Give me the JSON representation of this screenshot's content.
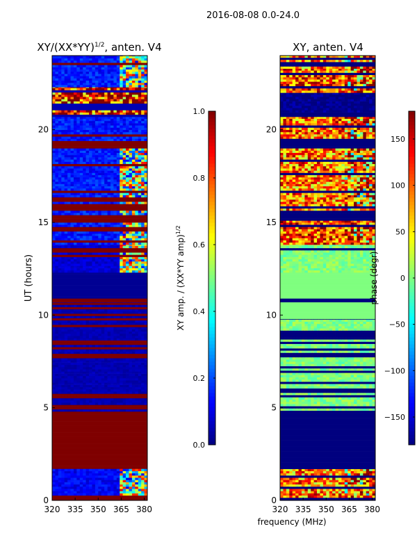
{
  "figure": {
    "suptitle": "2016-08-08 0.0-24.0",
    "xlabel_shared": "frequency (MHz)"
  },
  "colors": {
    "jet": [
      "#00007f",
      "#0000ff",
      "#007fff",
      "#00ffff",
      "#7fff7f",
      "#ffff00",
      "#ff7f00",
      "#ff0000",
      "#7f0000"
    ]
  },
  "chart_data": [
    {
      "id": "amp",
      "type": "heatmap",
      "title_main": "XY/(XX*YY)",
      "title_sup": "1/2",
      "title_tail": ", anten. V4",
      "ylabel": "UT (hours)",
      "xlim": [
        320,
        382
      ],
      "ylim": [
        0,
        24
      ],
      "xticks": [
        320,
        335,
        350,
        365,
        380
      ],
      "yticks": [
        0,
        5,
        10,
        15,
        20
      ],
      "clim": [
        0.0,
        1.0
      ],
      "colorbar": {
        "label_main": "XY amp. / (XX*YY amp)",
        "label_sup": "1/2",
        "ticks": [
          0.0,
          0.2,
          0.4,
          0.6,
          0.8,
          1.0
        ],
        "tick_labels": [
          "0.0",
          "0.2",
          "0.4",
          "0.6",
          "0.8",
          "1.0"
        ]
      },
      "time_bands": [
        {
          "t0": 0.0,
          "t1": 0.15,
          "pattern": "solid",
          "level": 1.0
        },
        {
          "t0": 0.15,
          "t1": 1.75,
          "pattern": "mixed",
          "level": 0.12
        },
        {
          "t0": 1.75,
          "t1": 4.8,
          "pattern": "solid",
          "level": 1.0
        },
        {
          "t0": 4.8,
          "t1": 10.7,
          "pattern": "lines",
          "level": 0.05
        },
        {
          "t0": 10.7,
          "t1": 10.9,
          "pattern": "solid",
          "level": 1.0
        },
        {
          "t0": 10.9,
          "t1": 12.3,
          "pattern": "solid",
          "level": 0.02
        },
        {
          "t0": 12.3,
          "t1": 13.8,
          "pattern": "mixed",
          "level": 0.08
        },
        {
          "t0": 13.8,
          "t1": 15.1,
          "pattern": "mixed",
          "level": 0.15
        },
        {
          "t0": 15.1,
          "t1": 15.4,
          "pattern": "solid",
          "level": 1.0
        },
        {
          "t0": 15.4,
          "t1": 19.0,
          "pattern": "mixed",
          "level": 0.15
        },
        {
          "t0": 19.0,
          "t1": 19.4,
          "pattern": "solid",
          "level": 1.0
        },
        {
          "t0": 19.4,
          "t1": 20.7,
          "pattern": "lines",
          "level": 0.15
        },
        {
          "t0": 20.7,
          "t1": 22.3,
          "pattern": "lines",
          "level": 0.9
        },
        {
          "t0": 22.3,
          "t1": 24.0,
          "pattern": "mixed",
          "level": 0.15
        }
      ],
      "bright_band_mhz": [
        364,
        382
      ]
    },
    {
      "id": "phase",
      "type": "heatmap",
      "title_main": "XY, anten. V4",
      "xlim": [
        320,
        382
      ],
      "ylim": [
        0,
        24
      ],
      "xticks": [
        320,
        335,
        350,
        365,
        380
      ],
      "yticks": [
        0,
        5,
        10,
        15,
        20
      ],
      "clim": [
        -180,
        180
      ],
      "colorbar": {
        "label_main": "phase (degr)",
        "ticks": [
          -150,
          -100,
          -50,
          0,
          50,
          100,
          150
        ],
        "tick_labels": [
          "−150",
          "−100",
          "−50",
          "0",
          "50",
          "100",
          "150"
        ]
      },
      "time_bands": [
        {
          "t0": 0.0,
          "t1": 0.15,
          "pattern": "solid",
          "level": -180
        },
        {
          "t0": 0.15,
          "t1": 1.7,
          "pattern": "noisy",
          "level": 90
        },
        {
          "t0": 1.7,
          "t1": 4.85,
          "pattern": "solid",
          "level": -180
        },
        {
          "t0": 4.85,
          "t1": 9.8,
          "pattern": "lines",
          "level": 0
        },
        {
          "t0": 9.8,
          "t1": 10.7,
          "pattern": "solid",
          "level": 0
        },
        {
          "t0": 10.7,
          "t1": 10.9,
          "pattern": "solid",
          "level": -180
        },
        {
          "t0": 10.9,
          "t1": 12.3,
          "pattern": "solid",
          "level": 0
        },
        {
          "t0": 12.3,
          "t1": 13.8,
          "pattern": "lines",
          "level": 0
        },
        {
          "t0": 13.8,
          "t1": 15.1,
          "pattern": "noisy",
          "level": 110
        },
        {
          "t0": 15.1,
          "t1": 15.4,
          "pattern": "solid",
          "level": -180
        },
        {
          "t0": 15.4,
          "t1": 19.0,
          "pattern": "noisy",
          "level": 90
        },
        {
          "t0": 19.0,
          "t1": 19.4,
          "pattern": "solid",
          "level": -180
        },
        {
          "t0": 19.4,
          "t1": 20.7,
          "pattern": "noisy",
          "level": 100
        },
        {
          "t0": 20.7,
          "t1": 22.0,
          "pattern": "lines",
          "level": -180
        },
        {
          "t0": 22.0,
          "t1": 23.3,
          "pattern": "noisy",
          "level": 110
        },
        {
          "t0": 23.3,
          "t1": 24.0,
          "pattern": "noisy",
          "level": 90
        }
      ]
    }
  ]
}
